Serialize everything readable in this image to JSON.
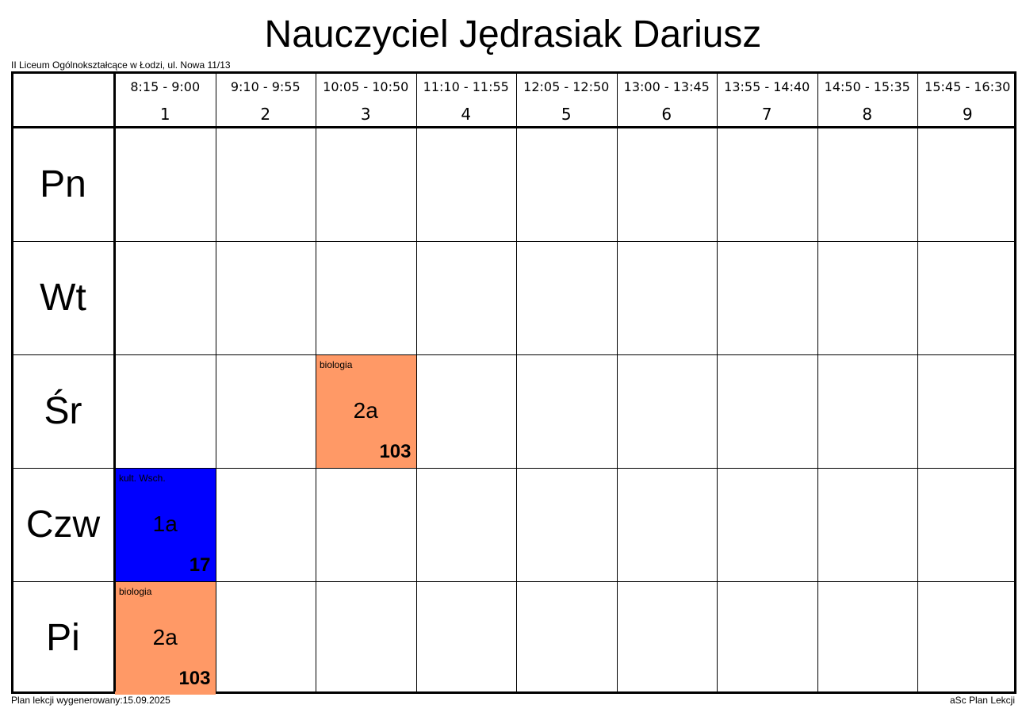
{
  "title": "Nauczyciel Jędrasiak Dariusz",
  "school": "II Liceum Ogólnokształcące w Łodzi, ul. Nowa 11/13",
  "periods": [
    {
      "time": "8:15 - 9:00",
      "num": "1"
    },
    {
      "time": "9:10 - 9:55",
      "num": "2"
    },
    {
      "time": "10:05 - 10:50",
      "num": "3"
    },
    {
      "time": "11:10 - 11:55",
      "num": "4"
    },
    {
      "time": "12:05 - 12:50",
      "num": "5"
    },
    {
      "time": "13:00 - 13:45",
      "num": "6"
    },
    {
      "time": "13:55 - 14:40",
      "num": "7"
    },
    {
      "time": "14:50 - 15:35",
      "num": "8"
    },
    {
      "time": "15:45 - 16:30",
      "num": "9"
    }
  ],
  "days": [
    "Pn",
    "Wt",
    "Śr",
    "Czw",
    "Pi"
  ],
  "lessons": [
    {
      "day": 2,
      "period": 3,
      "subject": "biologia",
      "class": "2a",
      "room": "103",
      "color": "#FF9966"
    },
    {
      "day": 3,
      "period": 1,
      "subject": "kult. Wsch.",
      "class": "1a",
      "room": "17",
      "color": "#0000FF"
    },
    {
      "day": 4,
      "period": 1,
      "subject": "biologia",
      "class": "2a",
      "room": "103",
      "color": "#FF9966"
    }
  ],
  "footer": {
    "generated": "Plan lekcji wygenerowany:15.09.2025",
    "software": "aSc Plan Lekcji"
  }
}
